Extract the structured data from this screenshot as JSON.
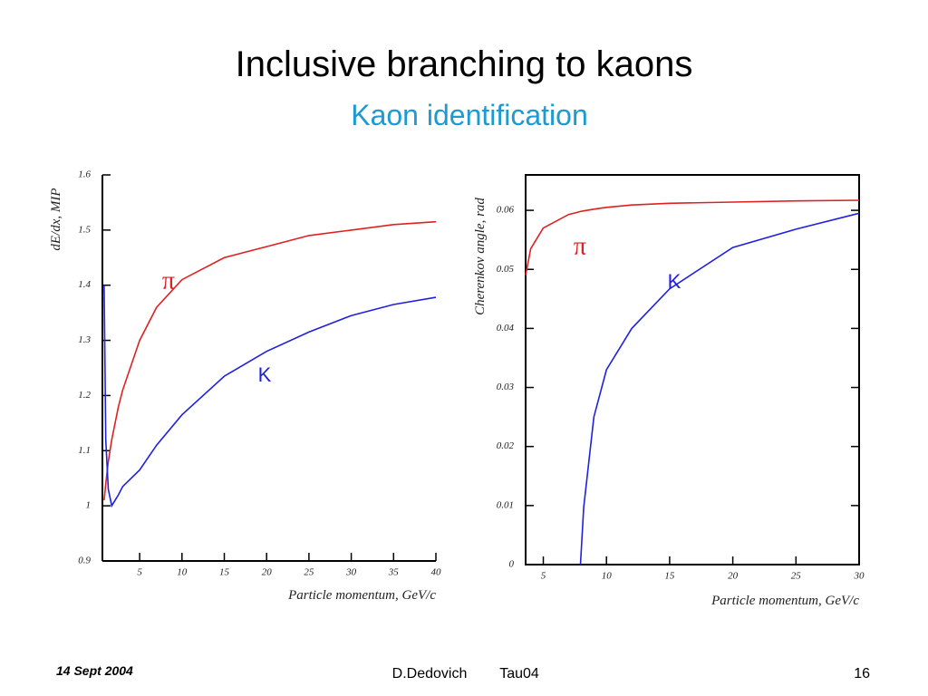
{
  "slide": {
    "title": "Inclusive branching to kaons",
    "subtitle": "Kaon identification"
  },
  "chart_data": [
    {
      "type": "line",
      "ylabel": "dE/dx, MIP",
      "xlabel": "Particle momentum, GeV/c",
      "x": [
        0.8,
        1,
        1.3,
        1.7,
        2.5,
        3,
        5,
        7,
        10,
        15,
        20,
        25,
        30,
        35,
        40
      ],
      "series": [
        {
          "name": "π",
          "color": "#e02020",
          "values": [
            1.01,
            1.04,
            1.08,
            1.12,
            1.18,
            1.21,
            1.3,
            1.36,
            1.41,
            1.45,
            1.47,
            1.49,
            1.5,
            1.51,
            1.515
          ]
        },
        {
          "name": "K",
          "color": "#2020e0",
          "values": [
            1.4,
            1.12,
            1.03,
            1.0,
            1.02,
            1.035,
            1.065,
            1.11,
            1.165,
            1.235,
            1.28,
            1.315,
            1.345,
            1.365,
            1.378
          ]
        }
      ],
      "xlim": [
        0.6,
        40
      ],
      "ylim": [
        0.9,
        1.6
      ],
      "xticks": [
        5,
        10,
        15,
        20,
        25,
        30,
        35,
        40
      ],
      "yticks": [
        0.9,
        1,
        1.1,
        1.2,
        1.3,
        1.4,
        1.5,
        1.6
      ]
    },
    {
      "type": "line",
      "ylabel": "Cherenkov angle, rad",
      "xlabel": "Particle momentum, GeV/c",
      "x": [
        3.6,
        4,
        5,
        7,
        7.94,
        8.2,
        9,
        10,
        12,
        15,
        20,
        25,
        30
      ],
      "series": [
        {
          "name": "π",
          "color": "#e02020",
          "values": [
            0.049,
            0.0535,
            0.057,
            0.0593,
            0.0598,
            0.0599,
            0.0602,
            0.0605,
            0.0609,
            0.0612,
            0.0614,
            0.0616,
            0.0617
          ]
        },
        {
          "name": "K",
          "color": "#2020e0",
          "values": [
            null,
            null,
            null,
            null,
            0,
            0.0097,
            0.025,
            0.033,
            0.04,
            0.0467,
            0.0537,
            0.0568,
            0.0595
          ]
        }
      ],
      "xlim": [
        3.6,
        30
      ],
      "ylim": [
        0,
        0.066
      ],
      "xticks": [
        5,
        10,
        15,
        20,
        25,
        30
      ],
      "yticks": [
        0,
        0.01,
        0.02,
        0.03,
        0.04,
        0.05,
        0.06
      ]
    }
  ],
  "footer": {
    "date": "14 Sept 2004",
    "author": "D.Dedovich",
    "conference": "Tau04",
    "page": "16"
  }
}
